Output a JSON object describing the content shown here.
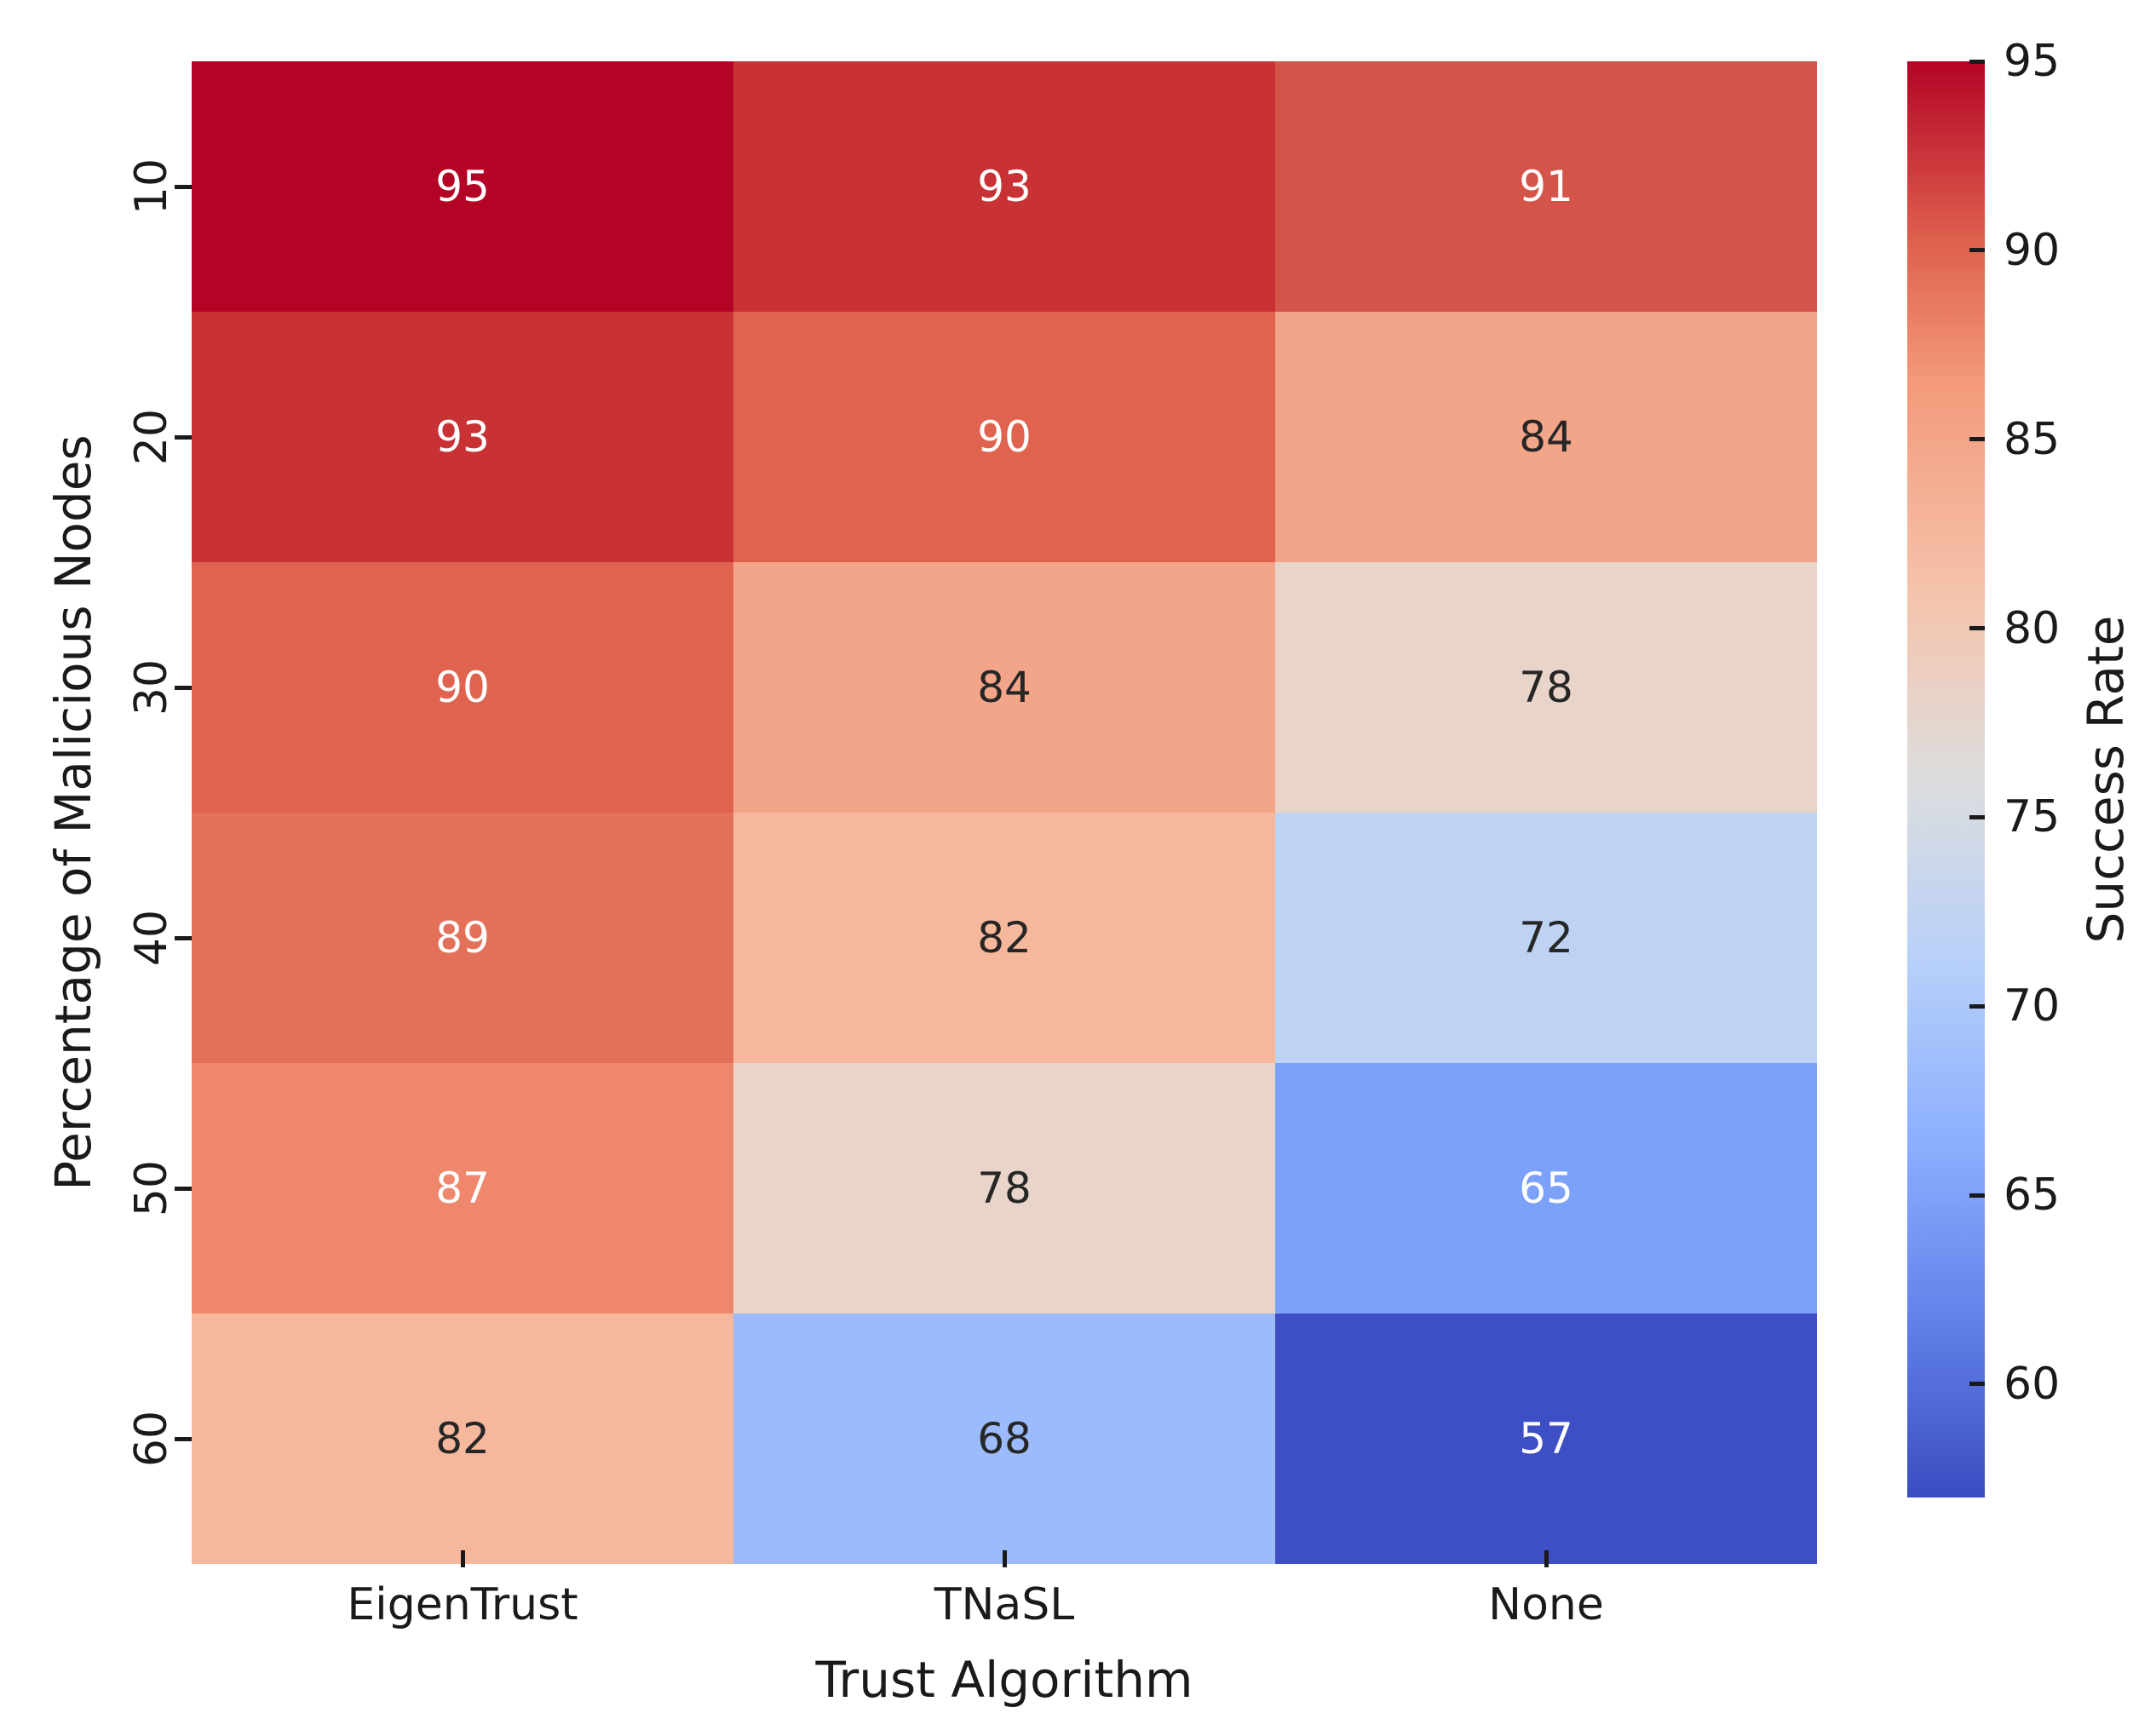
{
  "figure": {
    "background": "#ffffff",
    "label_color": "#1a1a1a",
    "annotation_light": "#ffffff",
    "annotation_dark": "#262626"
  },
  "chart_data": {
    "type": "heatmap",
    "xlabel": "Trust Algorithm",
    "ylabel": "Percentage of Malicious Nodes",
    "x_categories": [
      "EigenTrust",
      "TNaSL",
      "None"
    ],
    "y_categories": [
      "10",
      "20",
      "30",
      "40",
      "50",
      "60"
    ],
    "values": [
      [
        95,
        93,
        91
      ],
      [
        93,
        90,
        84
      ],
      [
        90,
        84,
        78
      ],
      [
        89,
        82,
        72
      ],
      [
        87,
        78,
        65
      ],
      [
        82,
        68,
        57
      ]
    ],
    "cell_colors": [
      [
        "#b40426",
        "#c83234",
        "#d5544a"
      ],
      [
        "#c83234",
        "#df634f",
        "#f3a58a"
      ],
      [
        "#df634f",
        "#f3a58a",
        "#e8d4c8"
      ],
      [
        "#e37059",
        "#f6b89d",
        "#bed3f4"
      ],
      [
        "#ee876c",
        "#e8d4c8",
        "#7ba1f8"
      ],
      [
        "#f6b89d",
        "#9bbbfc",
        "#3e4ec5"
      ]
    ],
    "annotation_tones": [
      [
        "light",
        "light",
        "light"
      ],
      [
        "light",
        "light",
        "dark"
      ],
      [
        "light",
        "dark",
        "dark"
      ],
      [
        "light",
        "dark",
        "dark"
      ],
      [
        "light",
        "dark",
        "light"
      ],
      [
        "dark",
        "dark",
        "light"
      ]
    ],
    "colorbar": {
      "label": "Success Rate",
      "min": 57,
      "max": 95,
      "ticks": [
        95,
        90,
        85,
        80,
        75,
        70,
        65,
        60
      ],
      "gradient_stops": [
        {
          "value": 95,
          "color": "#b40426"
        },
        {
          "value": 90.25,
          "color": "#de604d"
        },
        {
          "value": 86.5,
          "color": "#f49a7b"
        },
        {
          "value": 80.75,
          "color": "#f5c4ad"
        },
        {
          "value": 76,
          "color": "#dddddd"
        },
        {
          "value": 71.25,
          "color": "#b8d0f9"
        },
        {
          "value": 66.5,
          "color": "#8db0fe"
        },
        {
          "value": 61.75,
          "color": "#6282ea"
        },
        {
          "value": 57,
          "color": "#3b4cc0"
        }
      ]
    }
  }
}
